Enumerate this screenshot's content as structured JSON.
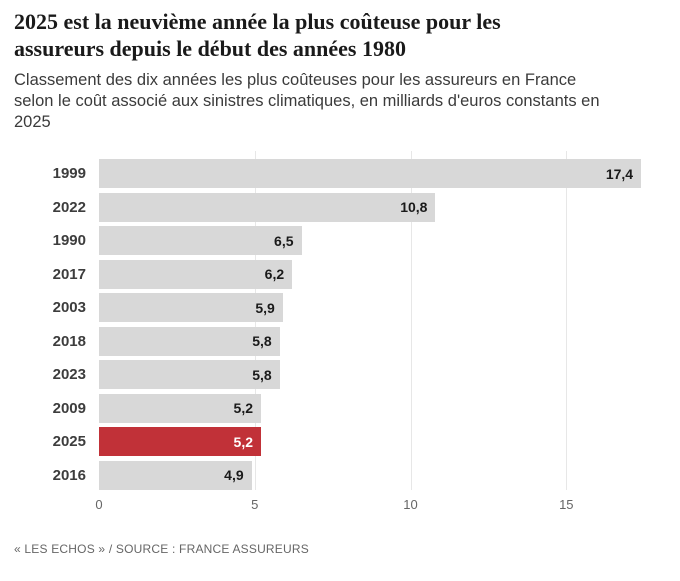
{
  "header": {
    "title": "2025 est la neuvième année la plus coûteuse pour les\nassureurs depuis le début des années 1980",
    "subtitle": "Classement des dix années les plus coûteuses pour les assureurs en France\nselon le coût associé aux sinistres climatiques, en milliards d'euros constants en\n2025"
  },
  "chart_data": {
    "type": "bar",
    "orientation": "horizontal",
    "title": "2025 est la neuvième année la plus coûteuse pour les assureurs depuis le début des années 1980",
    "subtitle": "Classement des dix années les plus coûteuses pour les assureurs en France selon le coût associé aux sinistres climatiques, en milliards d'euros constants en 2025",
    "categories": [
      "1999",
      "2022",
      "1990",
      "2017",
      "2003",
      "2018",
      "2023",
      "2009",
      "2025",
      "2016"
    ],
    "values": [
      17.4,
      10.8,
      6.5,
      6.2,
      5.9,
      5.8,
      5.8,
      5.2,
      5.2,
      4.9
    ],
    "value_labels": [
      "17,4",
      "10,8",
      "6,5",
      "6,2",
      "5,9",
      "5,8",
      "5,8",
      "5,2",
      "5,2",
      "4,9"
    ],
    "highlighted_category": "2025",
    "x_ticks": [
      0,
      5,
      10,
      15
    ],
    "xlim": [
      0,
      18.2
    ],
    "grid": true,
    "legend": false,
    "bar_color": "#d8d8d8",
    "highlight_color": "#c13138",
    "grid_color": "#e7e7e7",
    "value_label_color": "#1a1a1a",
    "highlight_value_label_color": "#ffffff"
  },
  "footer": {
    "credit": "« LES ECHOS » / SOURCE : FRANCE ASSUREURS"
  }
}
